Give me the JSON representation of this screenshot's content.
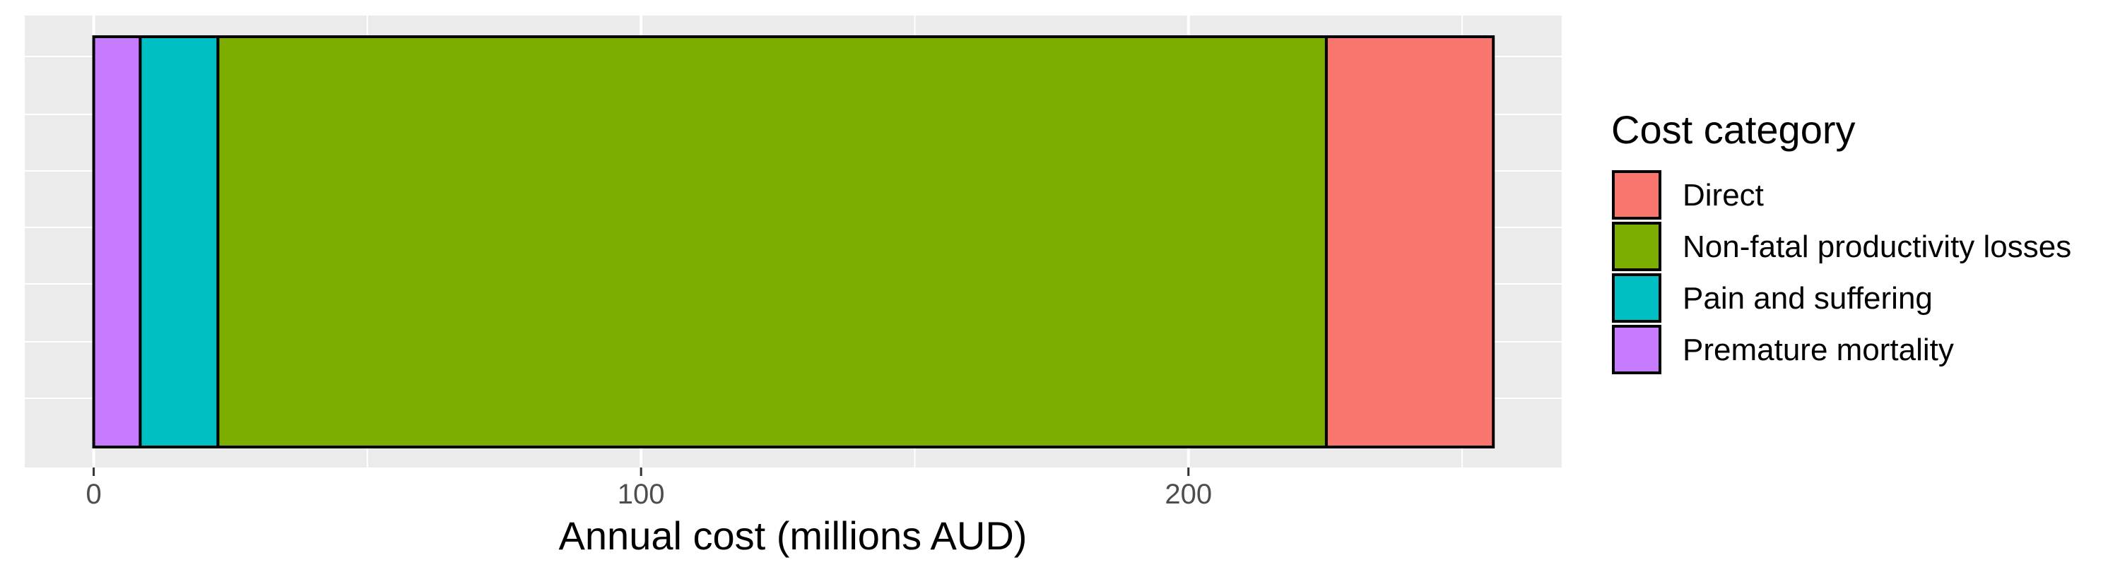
{
  "chart_data": {
    "type": "bar",
    "orientation": "horizontal",
    "stacked": true,
    "xlabel": "Annual cost (millions AUD)",
    "ylabel": "",
    "xlim": [
      -12.6,
      268.2
    ],
    "xticks": [
      0,
      100,
      200
    ],
    "xtick_labels": [
      "0",
      "100",
      "200"
    ],
    "grid": true,
    "stack_order_from_zero": [
      "Premature mortality",
      "Pain and suffering",
      "Non-fatal productivity losses",
      "Direct"
    ],
    "series": [
      {
        "name": "Direct",
        "value": 30.5,
        "color": "#F8766D"
      },
      {
        "name": "Non-fatal productivity losses",
        "value": 202.5,
        "color": "#7CAE00"
      },
      {
        "name": "Pain and suffering",
        "value": 14.2,
        "color": "#00BFC4"
      },
      {
        "name": "Premature mortality",
        "value": 8.5,
        "color": "#C77CFF"
      }
    ],
    "legend": {
      "title": "Cost category",
      "position": "right",
      "items": [
        "Direct",
        "Non-fatal productivity losses",
        "Pain and suffering",
        "Premature mortality"
      ]
    }
  },
  "colors": {
    "panel_background": "#EBEBEB",
    "grid_line": "#FFFFFF",
    "bar_border": "#000000"
  }
}
